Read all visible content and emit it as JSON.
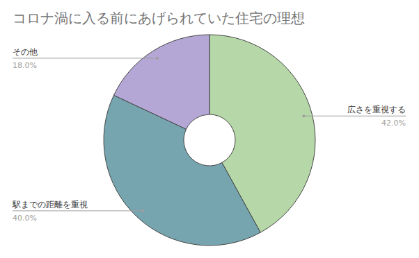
{
  "chart_data": {
    "type": "pie",
    "title": "コロナ渦に入る前にあげられていた住宅の理想",
    "categories": [
      "広さを重視する",
      "駅までの距離を重視",
      "その他"
    ],
    "values": [
      42,
      40,
      18
    ],
    "value_labels": [
      "42.0%",
      "40.0%",
      "18.0%"
    ],
    "colors": [
      "#b6d7a8",
      "#76a5af",
      "#b4a7d6"
    ],
    "data_labels": true
  }
}
